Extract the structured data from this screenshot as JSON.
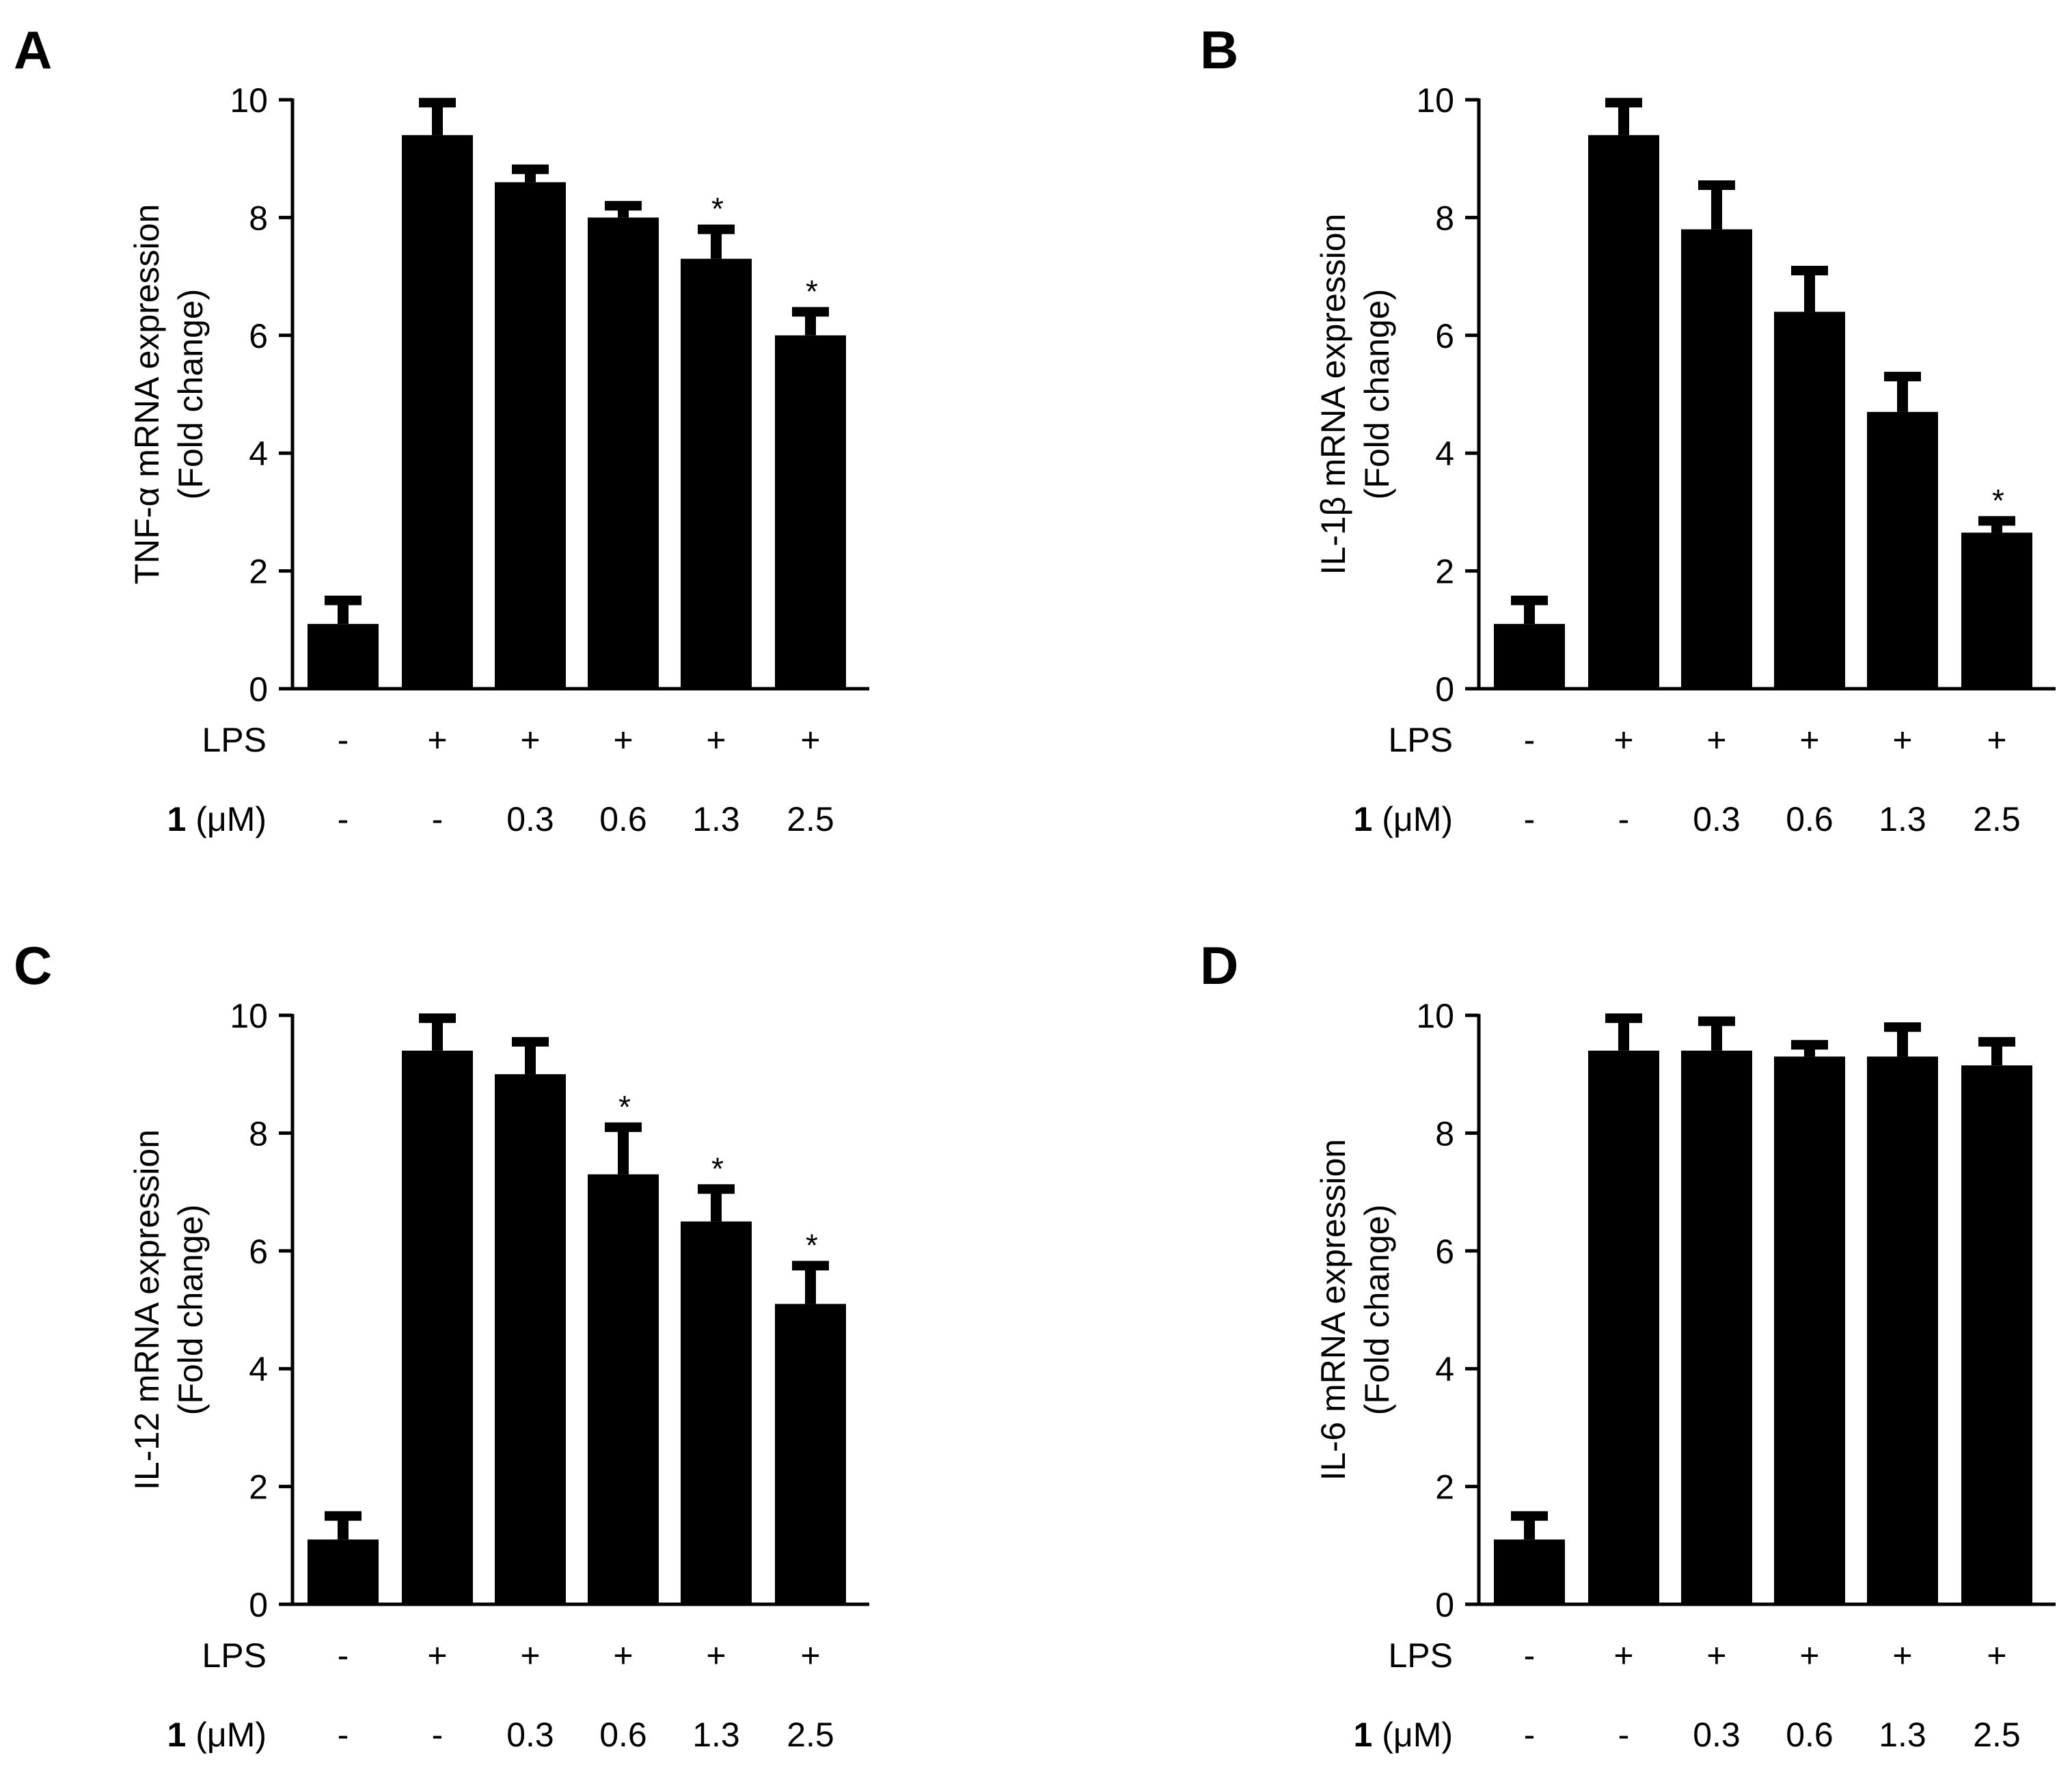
{
  "figure": {
    "row_labels": {
      "lps": "LPS",
      "compound_bold": "1",
      "compound_unit": " (μM)"
    }
  },
  "chart_data": [
    {
      "panel": "A",
      "type": "bar",
      "ylabel": [
        "TNF-α mRNA expression",
        "(Fold change)"
      ],
      "ylim": [
        0,
        10
      ],
      "yticks": [
        "0",
        "2",
        "4",
        "6",
        "8",
        "10"
      ],
      "lps": [
        "-",
        "+",
        "+",
        "+",
        "+",
        "+"
      ],
      "compound": [
        "-",
        "-",
        "0.3",
        "0.6",
        "1.3",
        "2.5"
      ],
      "values": [
        1.1,
        9.4,
        8.6,
        8.0,
        7.3,
        6.0
      ],
      "errors": [
        0.4,
        0.55,
        0.22,
        0.2,
        0.5,
        0.4
      ],
      "significance": [
        "",
        "",
        "",
        "",
        "*",
        "*"
      ]
    },
    {
      "panel": "B",
      "type": "bar",
      "ylabel": [
        "IL-1β mRNA expression",
        "(Fold change)"
      ],
      "ylim": [
        0,
        10
      ],
      "yticks": [
        "0",
        "2",
        "4",
        "6",
        "8",
        "10"
      ],
      "lps": [
        "-",
        "+",
        "+",
        "+",
        "+",
        "+"
      ],
      "compound": [
        "-",
        "-",
        "0.3",
        "0.6",
        "1.3",
        "2.5"
      ],
      "values": [
        1.1,
        9.4,
        7.8,
        6.4,
        4.7,
        2.65
      ],
      "errors": [
        0.4,
        0.55,
        0.75,
        0.7,
        0.6,
        0.2
      ],
      "significance": [
        "",
        "",
        "",
        "",
        "",
        "*"
      ]
    },
    {
      "panel": "C",
      "type": "bar",
      "ylabel": [
        "IL-12 mRNA expression",
        "(Fold change)"
      ],
      "ylim": [
        0,
        10
      ],
      "yticks": [
        "0",
        "2",
        "4",
        "6",
        "8",
        "10"
      ],
      "lps": [
        "-",
        "+",
        "+",
        "+",
        "+",
        "+"
      ],
      "compound": [
        "-",
        "-",
        "0.3",
        "0.6",
        "1.3",
        "2.5"
      ],
      "values": [
        1.1,
        9.4,
        9.0,
        7.3,
        6.5,
        5.1
      ],
      "errors": [
        0.4,
        0.55,
        0.55,
        0.8,
        0.55,
        0.65
      ],
      "significance": [
        "",
        "",
        "",
        "*",
        "*",
        "*"
      ]
    },
    {
      "panel": "D",
      "type": "bar",
      "ylabel": [
        "IL-6 mRNA expression",
        "(Fold change)"
      ],
      "ylim": [
        0,
        10
      ],
      "yticks": [
        "0",
        "2",
        "4",
        "6",
        "8",
        "10"
      ],
      "lps": [
        "-",
        "+",
        "+",
        "+",
        "+",
        "+"
      ],
      "compound": [
        "-",
        "-",
        "0.3",
        "0.6",
        "1.3",
        "2.5"
      ],
      "values": [
        1.1,
        9.4,
        9.4,
        9.3,
        9.3,
        9.15
      ],
      "errors": [
        0.4,
        0.55,
        0.5,
        0.2,
        0.5,
        0.4
      ],
      "significance": [
        "",
        "",
        "",
        "",
        "",
        ""
      ]
    }
  ]
}
